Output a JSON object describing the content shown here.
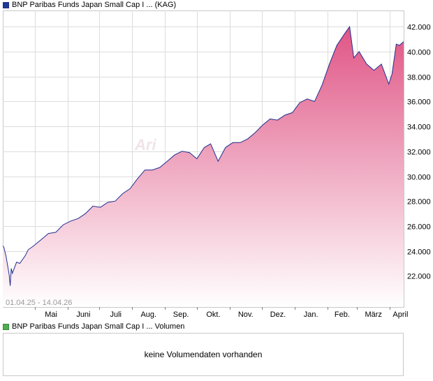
{
  "price_legend": {
    "label": "BNP Paribas Funds Japan Small Cap I ... (KAG)",
    "swatch_color": "#1f3a93"
  },
  "volume_legend": {
    "label": "BNP Paribas Funds Japan Small Cap I ... Volumen",
    "swatch_color": "#4caf50"
  },
  "volume_message": "keine Volumendaten vorhanden",
  "date_range": "01.04.25 - 14.04.26",
  "watermark": "Ari",
  "colors": {
    "line": "#1f2f8f",
    "area_top": "#e05585",
    "area_bottom": "#ffffff",
    "grid": "#dcdcdc"
  },
  "chart_data": {
    "type": "area",
    "y_ticks": [
      "22.000",
      "24.000",
      "26.000",
      "28.000",
      "30.000",
      "32.000",
      "34.000",
      "36.000",
      "38.000",
      "40.000",
      "42.000"
    ],
    "ylim": [
      19500,
      43300
    ],
    "x_ticks": [
      "Mai",
      "Juni",
      "Juli",
      "Aug.",
      "Sep.",
      "Okt.",
      "Nov.",
      "Dez.",
      "Jan.",
      "Feb.",
      "März",
      "April"
    ],
    "x_tick_dates": [
      "2025-05-01",
      "2025-06-01",
      "2025-07-01",
      "2025-08-01",
      "2025-09-01",
      "2025-10-01",
      "2025-11-01",
      "2025-12-01",
      "2026-01-01",
      "2026-02-01",
      "2026-03-01",
      "2026-04-01"
    ],
    "xlim": [
      "2025-04-01",
      "2026-04-14"
    ],
    "grid": true,
    "series": [
      {
        "dates": [
          "2025-04-01",
          "2025-04-02",
          "2025-04-04",
          "2025-04-07",
          "2025-04-08",
          "2025-04-09",
          "2025-04-10",
          "2025-04-14",
          "2025-04-17",
          "2025-04-22",
          "2025-04-25",
          "2025-04-30",
          "2025-05-07",
          "2025-05-14",
          "2025-05-21",
          "2025-05-28",
          "2025-06-04",
          "2025-06-11",
          "2025-06-18",
          "2025-06-25",
          "2025-07-02",
          "2025-07-09",
          "2025-07-16",
          "2025-07-23",
          "2025-07-30",
          "2025-08-06",
          "2025-08-13",
          "2025-08-20",
          "2025-08-27",
          "2025-09-03",
          "2025-09-10",
          "2025-09-17",
          "2025-09-24",
          "2025-10-01",
          "2025-10-08",
          "2025-10-14",
          "2025-10-21",
          "2025-10-28",
          "2025-11-04",
          "2025-11-11",
          "2025-11-18",
          "2025-11-25",
          "2025-12-02",
          "2025-12-09",
          "2025-12-16",
          "2025-12-23",
          "2025-12-30",
          "2026-01-06",
          "2026-01-13",
          "2026-01-20",
          "2026-01-27",
          "2026-02-03",
          "2026-02-10",
          "2026-02-17",
          "2026-02-22",
          "2026-02-26",
          "2026-03-03",
          "2026-03-10",
          "2026-03-17",
          "2026-03-24",
          "2026-03-31",
          "2026-04-03",
          "2026-04-07",
          "2026-04-10",
          "2026-04-14"
        ],
        "values": [
          24400,
          24300,
          23600,
          22100,
          21200,
          22600,
          22200,
          23100,
          23000,
          23600,
          24100,
          24400,
          24900,
          25400,
          25500,
          26100,
          26400,
          26600,
          27000,
          27600,
          27500,
          27900,
          28000,
          28600,
          29000,
          29800,
          30500,
          30500,
          30700,
          31200,
          31700,
          32000,
          31900,
          31400,
          32300,
          32600,
          31200,
          32300,
          32700,
          32700,
          33000,
          33500,
          34100,
          34600,
          34500,
          34900,
          35100,
          35900,
          36200,
          36000,
          37300,
          39000,
          40500,
          41400,
          42000,
          39500,
          40000,
          39000,
          38500,
          39000,
          37400,
          38200,
          40600,
          40500,
          40800
        ]
      }
    ]
  }
}
